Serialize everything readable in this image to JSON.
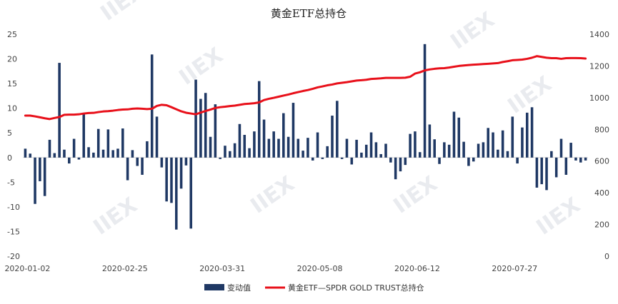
{
  "chart_data": {
    "type": "bar+line",
    "title": "黄金ETF总持仓",
    "colors": {
      "bar": "#1f3864",
      "line": "#e8101a"
    },
    "y_left": {
      "ylim": [
        -20,
        25
      ],
      "ticks": [
        "-20",
        "-15",
        "-10",
        "-5",
        "0",
        "5",
        "10",
        "15",
        "20",
        "25"
      ]
    },
    "y_right": {
      "ylim": [
        0,
        1400
      ],
      "ticks": [
        "0",
        "200",
        "400",
        "600",
        "800",
        "1000",
        "1200",
        "1400"
      ]
    },
    "x_tick_labels": [
      "2020-01-02",
      "2020-02-25",
      "2020-03-31",
      "2020-05-08",
      "2020-06-12",
      "2020-07-27"
    ],
    "x_tick_index": [
      0,
      20,
      40,
      60,
      80,
      100
    ],
    "legend": {
      "position": "bottom",
      "bar_label": "变动值",
      "line_label": "黄金ETF—SPDR GOLD TRUST总持仓"
    },
    "bar_series": {
      "name": "变动值",
      "values": [
        1.8,
        0.8,
        -9.4,
        -4.8,
        -7.8,
        3.6,
        0.9,
        19.2,
        1.6,
        -1.2,
        3.8,
        -0.4,
        9.0,
        2.1,
        1.0,
        5.8,
        1.6,
        5.7,
        1.5,
        1.8,
        5.9,
        -4.6,
        1.5,
        -1.7,
        -3.5,
        3.3,
        20.9,
        8.3,
        -2.0,
        -8.9,
        -9.2,
        -14.6,
        -6.3,
        -1.6,
        -14.4,
        15.8,
        11.9,
        13.1,
        4.2,
        10.8,
        -0.3,
        2.4,
        1.3,
        2.9,
        6.8,
        4.6,
        1.9,
        5.3,
        15.5,
        7.7,
        3.8,
        5.3,
        3.8,
        9.0,
        4.2,
        11.1,
        3.8,
        1.4,
        4.0,
        -0.6,
        5.1,
        -0.3,
        2.3,
        8.5,
        11.5,
        -0.3,
        3.8,
        -1.4,
        3.6,
        1.0,
        2.6,
        5.1,
        3.1,
        0.7,
        2.8,
        -1.0,
        -4.4,
        -2.8,
        -1.5,
        4.8,
        5.3,
        1.1,
        23.0,
        6.7,
        3.7,
        -1.3,
        3.1,
        2.6,
        9.3,
        8.1,
        3.2,
        -1.7,
        -0.8,
        2.8,
        3.1,
        6.0,
        5.1,
        1.6,
        5.5,
        1.3,
        8.3,
        -1.2,
        6.1,
        9.1,
        10.2,
        -6.1,
        -5.4,
        -6.6,
        1.3,
        -4.0,
        3.8,
        -3.5,
        3.0,
        -0.6,
        -1.0,
        -0.6
      ]
    },
    "line_series": {
      "name": "黄金ETF—SPDR GOLD TRUST总持仓",
      "values": [
        887,
        887,
        882,
        876,
        870,
        865,
        872,
        878,
        892,
        893,
        893,
        895,
        900,
        903,
        904,
        909,
        913,
        915,
        918,
        922,
        925,
        926,
        930,
        932,
        930,
        928,
        930,
        948,
        955,
        952,
        940,
        927,
        914,
        905,
        900,
        895,
        906,
        916,
        925,
        935,
        940,
        943,
        947,
        950,
        955,
        960,
        962,
        965,
        970,
        985,
        993,
        999,
        1006,
        1013,
        1020,
        1028,
        1035,
        1042,
        1048,
        1056,
        1065,
        1071,
        1078,
        1083,
        1090,
        1094,
        1098,
        1103,
        1108,
        1110,
        1113,
        1118,
        1120,
        1122,
        1125,
        1125,
        1125,
        1125,
        1126,
        1132,
        1152,
        1160,
        1172,
        1178,
        1182,
        1185,
        1186,
        1190,
        1195,
        1200,
        1203,
        1206,
        1208,
        1210,
        1212,
        1214,
        1216,
        1218,
        1225,
        1230,
        1236,
        1238,
        1240,
        1245,
        1252,
        1262,
        1257,
        1252,
        1249,
        1249,
        1245,
        1249,
        1250,
        1250,
        1249,
        1247
      ]
    }
  }
}
